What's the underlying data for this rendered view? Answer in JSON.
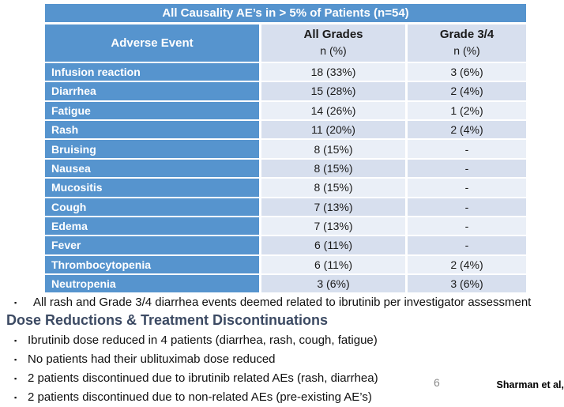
{
  "slide": {
    "page_number": "6",
    "citation": "Sharman et al,"
  },
  "table": {
    "title": "All Causality AE’s in > 5% of Patients (n=54)",
    "columns": {
      "event": "Adverse Event",
      "all_grades_line1": "All Grades",
      "all_grades_line2": "n (%)",
      "grade34_line1": "Grade 3/4",
      "grade34_line2": "n (%)"
    },
    "rows": [
      {
        "event": "Infusion reaction",
        "all_grades": "18 (33%)",
        "grade34": "3 (6%)"
      },
      {
        "event": "Diarrhea",
        "all_grades": "15 (28%)",
        "grade34": "2 (4%)"
      },
      {
        "event": "Fatigue",
        "all_grades": "14 (26%)",
        "grade34": "1 (2%)"
      },
      {
        "event": "Rash",
        "all_grades": "11 (20%)",
        "grade34": "2 (4%)"
      },
      {
        "event": "Bruising",
        "all_grades": "8 (15%)",
        "grade34": "-"
      },
      {
        "event": "Nausea",
        "all_grades": "8 (15%)",
        "grade34": "-"
      },
      {
        "event": "Mucositis",
        "all_grades": "8 (15%)",
        "grade34": "-"
      },
      {
        "event": "Cough",
        "all_grades": "7 (13%)",
        "grade34": "-"
      },
      {
        "event": "Edema",
        "all_grades": "7 (13%)",
        "grade34": "-"
      },
      {
        "event": "Fever",
        "all_grades": "6 (11%)",
        "grade34": "-"
      },
      {
        "event": "Thrombocytopenia",
        "all_grades": "6 (11%)",
        "grade34": "2 (4%)"
      },
      {
        "event": "Neutropenia",
        "all_grades": "3 (6%)",
        "grade34": "3 (6%)"
      }
    ]
  },
  "notes": {
    "bullet_marker": "▪",
    "bullet_top": "All rash and Grade 3/4 diarrhea events deemed related to ibrutinib per investigator assessment",
    "heading": "Dose Reductions & Treatment Discontinuations",
    "bullets": [
      "Ibrutinib dose reduced in 4 patients (diarrhea, rash, cough, fatigue)",
      "No patients had their ublituximab dose reduced",
      "2 patients discontinued due to ibrutinib related AEs (rash, diarrhea)",
      "2 patients discontinued due to non-related AEs (pre-existing AE’s)"
    ]
  },
  "colors": {
    "table_blue": "#5694CE",
    "band_light": "#EAEFF7",
    "band_dark": "#D7DFEE",
    "heading_navy": "#3C4A63"
  }
}
